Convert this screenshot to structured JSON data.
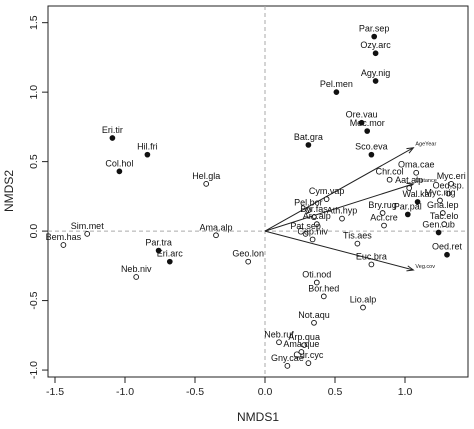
{
  "chart_data": {
    "type": "scatter",
    "xlabel": "NMDS1",
    "ylabel": "NMDS2",
    "xlim": [
      -1.55,
      1.45
    ],
    "ylim": [
      -1.05,
      1.62
    ],
    "x_ticks": [
      -1.5,
      -1.0,
      -0.5,
      0.0,
      0.5,
      1.0
    ],
    "y_ticks": [
      -1.0,
      -0.5,
      0.0,
      0.5,
      1.0,
      1.5
    ],
    "x_tick_labels": [
      "-1.5",
      "-1.0",
      "-0.5",
      "0.0",
      "0.5",
      "1.0"
    ],
    "y_tick_labels": [
      "-1.0",
      "-0.5",
      "0.0",
      "0.5",
      "1.0",
      "1.5"
    ],
    "reference_lines": {
      "x": 0,
      "y": 0,
      "style": "dashed"
    },
    "series": [
      {
        "marker": "filled-circle",
        "points": [
          {
            "label": "Par.sep",
            "x": 0.78,
            "y": 1.4
          },
          {
            "label": "Ozy.arc",
            "x": 0.79,
            "y": 1.28
          },
          {
            "label": "Agy.nig",
            "x": 0.79,
            "y": 1.08
          },
          {
            "label": "Pel.men",
            "x": 0.51,
            "y": 1.0
          },
          {
            "label": "Ore.vau",
            "x": 0.69,
            "y": 0.78
          },
          {
            "label": "Mec.mor",
            "x": 0.73,
            "y": 0.72
          },
          {
            "label": "Bat.gra",
            "x": 0.31,
            "y": 0.62
          },
          {
            "label": "Sco.eva",
            "x": 0.76,
            "y": 0.55
          },
          {
            "label": "Eri.tir",
            "x": -1.09,
            "y": 0.67
          },
          {
            "label": "Hil.fri",
            "x": -0.84,
            "y": 0.55
          },
          {
            "label": "Col.hol",
            "x": -1.04,
            "y": 0.43
          },
          {
            "label": "Wal.kar",
            "x": 1.09,
            "y": 0.21
          },
          {
            "label": "Par.pal",
            "x": 1.02,
            "y": 0.12
          },
          {
            "label": "Gen.rub",
            "x": 1.24,
            "y": -0.01
          },
          {
            "label": "Oed.ret",
            "x": 1.3,
            "y": -0.17
          },
          {
            "label": "Par.tra",
            "x": -0.76,
            "y": -0.14
          },
          {
            "label": "Eri.arc",
            "x": -0.68,
            "y": -0.22
          }
        ]
      },
      {
        "marker": "open-circle",
        "points": [
          {
            "label": "Oma.cae",
            "x": 1.08,
            "y": 0.42
          },
          {
            "label": "Chr.col",
            "x": 0.89,
            "y": 0.37
          },
          {
            "label": "Aat.alp",
            "x": 1.03,
            "y": 0.31
          },
          {
            "label": "Myc.eri",
            "x": 1.33,
            "y": 0.34
          },
          {
            "label": "Oed.sp.",
            "x": 1.31,
            "y": 0.27
          },
          {
            "label": "Myc.nig",
            "x": 1.25,
            "y": 0.22
          },
          {
            "label": "Gna.lep",
            "x": 1.27,
            "y": 0.13
          },
          {
            "label": "Tac.elo",
            "x": 1.28,
            "y": 0.05
          },
          {
            "label": "Bry.rug",
            "x": 0.84,
            "y": 0.13
          },
          {
            "label": "Aci.cre",
            "x": 0.85,
            "y": 0.04
          },
          {
            "label": "Cym.vap",
            "x": 0.44,
            "y": 0.23
          },
          {
            "label": "Pel.bor",
            "x": 0.31,
            "y": 0.15
          },
          {
            "label": "Byr.fas",
            "x": 0.35,
            "y": 0.1
          },
          {
            "label": "Arc.alp",
            "x": 0.37,
            "y": 0.05
          },
          {
            "label": "Ath.hyp",
            "x": 0.55,
            "y": 0.09
          },
          {
            "label": "Pat.sep",
            "x": 0.29,
            "y": -0.02
          },
          {
            "label": "Cep.niv",
            "x": 0.34,
            "y": -0.06
          },
          {
            "label": "Tis.aes",
            "x": 0.66,
            "y": -0.09
          },
          {
            "label": "Euc.bra",
            "x": 0.76,
            "y": -0.24
          },
          {
            "label": "Sim.met",
            "x": -1.27,
            "y": -0.02
          },
          {
            "label": "Bem.has",
            "x": -1.44,
            "y": -0.1
          },
          {
            "label": "Neb.niv",
            "x": -0.92,
            "y": -0.33
          },
          {
            "label": "Hel.gla",
            "x": -0.42,
            "y": 0.34
          },
          {
            "label": "Ama.alp",
            "x": -0.35,
            "y": -0.03
          },
          {
            "label": "Geo.lon",
            "x": -0.12,
            "y": -0.22
          },
          {
            "label": "Oti.nod",
            "x": 0.37,
            "y": -0.37
          },
          {
            "label": "Bor.hed",
            "x": 0.42,
            "y": -0.47
          },
          {
            "label": "Lio.alp",
            "x": 0.7,
            "y": -0.55
          },
          {
            "label": "Not.aqu",
            "x": 0.35,
            "y": -0.66
          },
          {
            "label": "Neb.ruf",
            "x": 0.1,
            "y": -0.8
          },
          {
            "label": "Arp.qua",
            "x": 0.28,
            "y": -0.82
          },
          {
            "label": "Ama.que",
            "x": 0.26,
            "y": -0.87
          },
          {
            "label": "Gny.cae",
            "x": 0.16,
            "y": -0.97
          },
          {
            "label": "Cur.cyc",
            "x": 0.31,
            "y": -0.95
          }
        ]
      }
    ],
    "vectors": [
      {
        "label": "AgeYear",
        "x": 1.06,
        "y": 0.6
      },
      {
        "label": "Distance",
        "x": 1.06,
        "y": 0.34
      },
      {
        "label": "Veg.cov",
        "x": 1.06,
        "y": -0.28
      }
    ]
  }
}
